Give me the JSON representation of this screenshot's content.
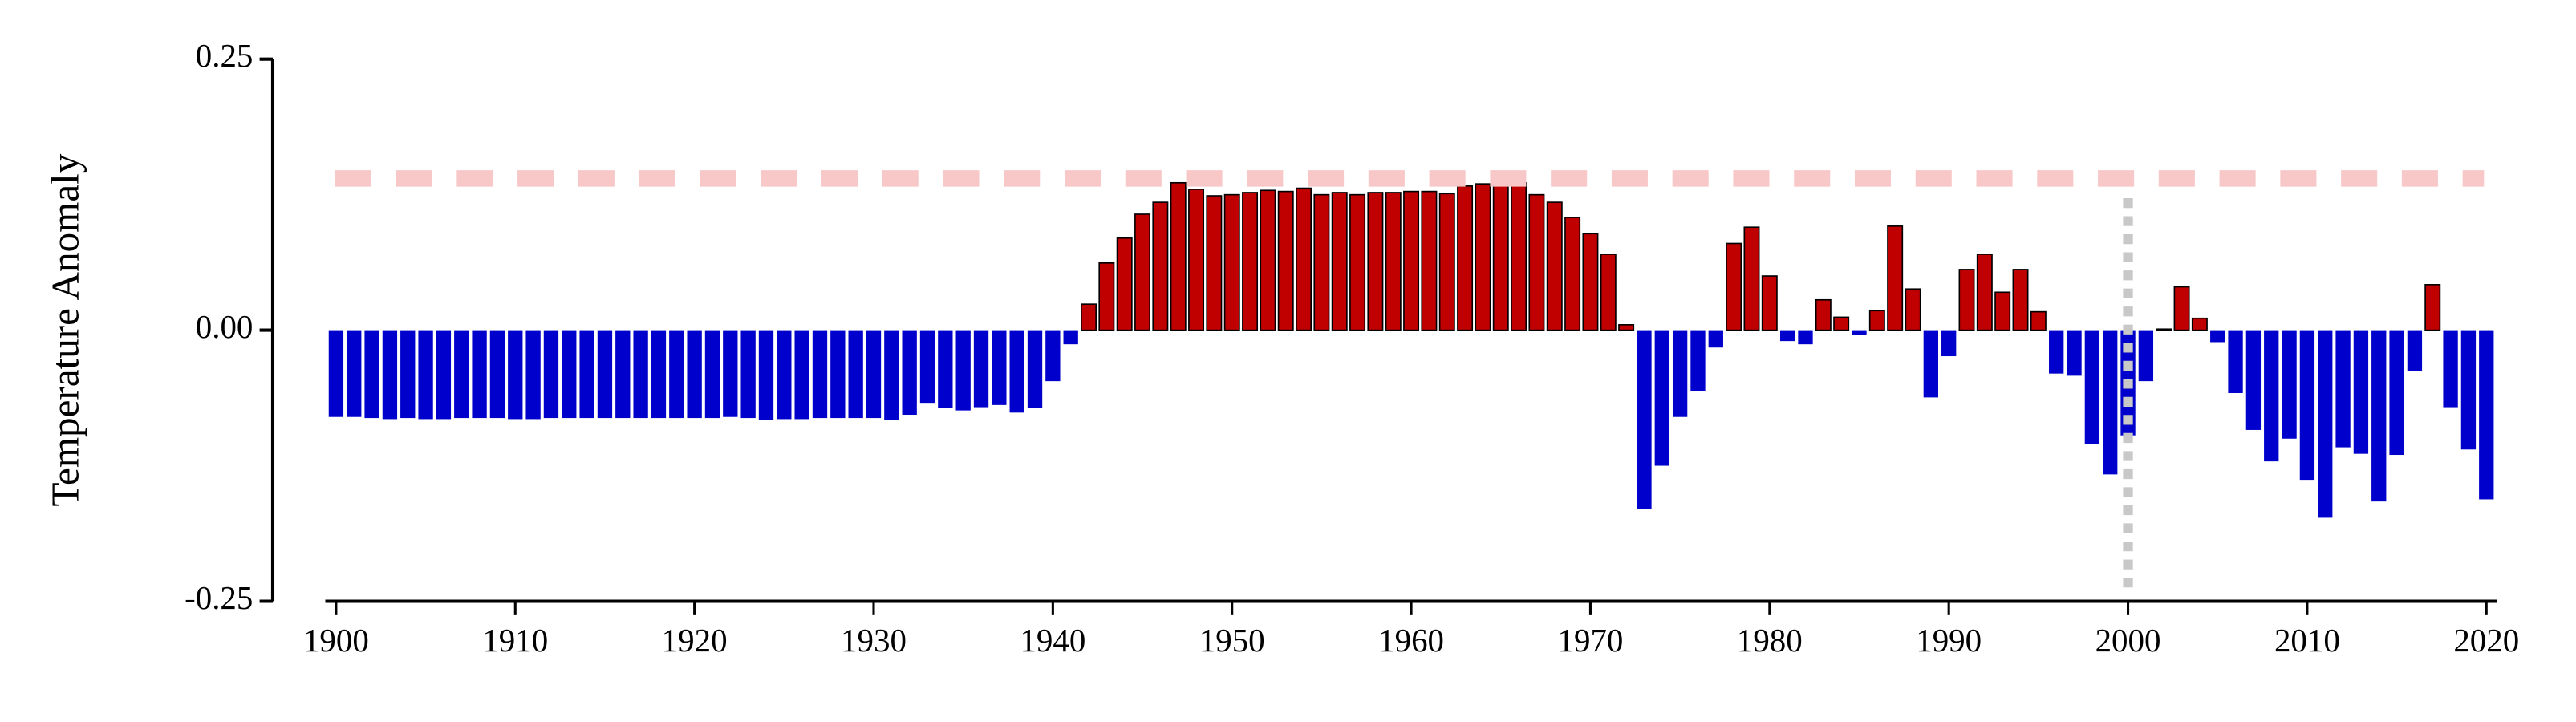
{
  "chart_data": {
    "type": "bar",
    "y_label": "Temperature Anomaly",
    "x": [
      1900,
      1901,
      1902,
      1903,
      1904,
      1905,
      1906,
      1907,
      1908,
      1909,
      1910,
      1911,
      1912,
      1913,
      1914,
      1915,
      1916,
      1917,
      1918,
      1919,
      1920,
      1921,
      1922,
      1923,
      1924,
      1925,
      1926,
      1927,
      1928,
      1929,
      1930,
      1931,
      1932,
      1933,
      1934,
      1935,
      1936,
      1937,
      1938,
      1939,
      1940,
      1941,
      1942,
      1943,
      1944,
      1945,
      1946,
      1947,
      1948,
      1949,
      1950,
      1951,
      1952,
      1953,
      1954,
      1955,
      1956,
      1957,
      1958,
      1959,
      1960,
      1961,
      1962,
      1963,
      1964,
      1965,
      1966,
      1967,
      1968,
      1969,
      1970,
      1971,
      1972,
      1973,
      1974,
      1975,
      1976,
      1977,
      1978,
      1979,
      1980,
      1981,
      1982,
      1983,
      1984,
      1985,
      1986,
      1987,
      1988,
      1989,
      1990,
      1991,
      1992,
      1993,
      1994,
      1995,
      1996,
      1997,
      1998,
      1999,
      2000,
      2001,
      2002,
      2003,
      2004,
      2005,
      2006,
      2007,
      2008,
      2009,
      2010,
      2011,
      2012,
      2013,
      2014,
      2015,
      2016,
      2017,
      2018,
      2019,
      2020
    ],
    "values": [
      -0.08,
      -0.08,
      -0.081,
      -0.082,
      -0.081,
      -0.082,
      -0.082,
      -0.081,
      -0.081,
      -0.081,
      -0.082,
      -0.082,
      -0.081,
      -0.081,
      -0.081,
      -0.081,
      -0.081,
      -0.081,
      -0.081,
      -0.081,
      -0.081,
      -0.081,
      -0.08,
      -0.081,
      -0.083,
      -0.082,
      -0.082,
      -0.081,
      -0.081,
      -0.081,
      -0.081,
      -0.083,
      -0.078,
      -0.067,
      -0.072,
      -0.074,
      -0.071,
      -0.069,
      -0.076,
      -0.072,
      -0.047,
      -0.013,
      0.024,
      0.062,
      0.085,
      0.107,
      0.118,
      0.136,
      0.13,
      0.124,
      0.125,
      0.127,
      0.129,
      0.128,
      0.131,
      0.125,
      0.127,
      0.125,
      0.127,
      0.127,
      0.128,
      0.128,
      0.126,
      0.133,
      0.135,
      0.14,
      0.136,
      0.125,
      0.118,
      0.104,
      0.089,
      0.07,
      0.005,
      -0.165,
      -0.125,
      -0.08,
      -0.056,
      -0.016,
      0.08,
      0.095,
      0.05,
      -0.01,
      -0.013,
      0.028,
      0.012,
      -0.004,
      0.018,
      0.096,
      0.038,
      -0.062,
      -0.024,
      0.056,
      0.07,
      0.035,
      0.056,
      0.017,
      -0.04,
      -0.042,
      -0.105,
      -0.133,
      -0.097,
      -0.047,
      0.001,
      0.04,
      0.011,
      -0.011,
      -0.058,
      -0.092,
      -0.121,
      -0.1,
      -0.138,
      -0.173,
      -0.108,
      -0.114,
      -0.158,
      -0.115,
      -0.038,
      0.042,
      -0.071,
      -0.11,
      -0.156
    ],
    "positive_color": "#c00000",
    "negative_color": "#0000cc",
    "xlim": [
      1899.4,
      2020.6
    ],
    "xticks": [
      1900,
      1910,
      1920,
      1930,
      1940,
      1950,
      1960,
      1970,
      1980,
      1990,
      2000,
      2010,
      2020
    ],
    "ylim": [
      -0.25,
      0.25
    ],
    "yticks": [
      -0.25,
      {
        "value": 0,
        "label": "0.00"
      },
      0.25
    ],
    "hline": 0.14,
    "hline_color": "#f8c8c8",
    "vline": 2000,
    "vline_color": "#c8c8c8"
  }
}
